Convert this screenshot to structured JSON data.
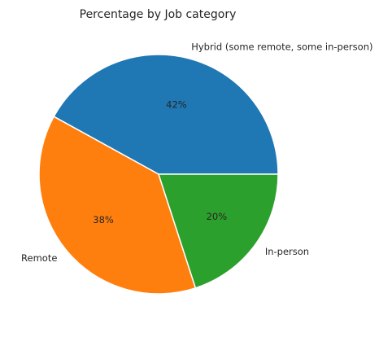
{
  "chart_data": {
    "type": "pie",
    "title": "Percentage by Job category",
    "categories": [
      "Hybrid (some remote, some in-person)",
      "Remote",
      "In-person"
    ],
    "values": [
      42,
      38,
      20
    ],
    "value_labels": [
      "42%",
      "38%",
      "20%"
    ],
    "colors": [
      "#1f77b4",
      "#ff7f0e",
      "#2ca02c"
    ],
    "start_angle_deg": 0,
    "direction": "counterclockwise",
    "legend": "none"
  }
}
